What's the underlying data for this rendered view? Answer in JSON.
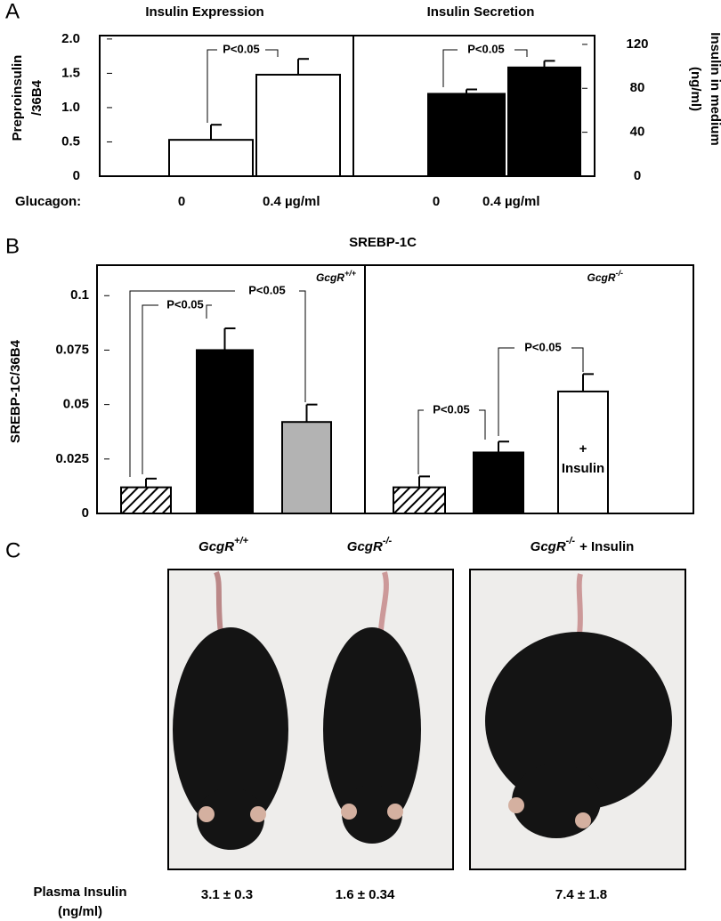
{
  "panel_labels": [
    "A",
    "B",
    "C"
  ],
  "chart_data": [
    {
      "type": "bar",
      "title": "Insulin Expression",
      "ylabel": [
        "Preproinsulin",
        "/36B4"
      ],
      "category_label": "Glucagon:",
      "categories": [
        "0",
        "0.4 µg/ml"
      ],
      "values": [
        0.53,
        1.48
      ],
      "errors": [
        0.22,
        0.23
      ],
      "colors": [
        "#ffffff",
        "#ffffff"
      ],
      "ylim": [
        0,
        2.05
      ],
      "yticks": [
        0,
        0.5,
        {
          "value": 1,
          "label": "1.0"
        },
        1.5,
        {
          "value": 2,
          "label": "2.0"
        }
      ],
      "y_axis_side": "left",
      "grid": false,
      "annotations": [
        "P<0.05"
      ]
    },
    {
      "type": "bar",
      "title": "Insulin Secretion",
      "ylabel": [
        "Insulin in medium",
        "(ng/ml)"
      ],
      "categories": [
        "0",
        "0.4 µg/ml"
      ],
      "values": [
        75,
        99
      ],
      "errors": [
        4,
        6
      ],
      "colors": [
        "#000000",
        "#000000"
      ],
      "ylim": [
        0,
        128
      ],
      "yticks": [
        0,
        40,
        80,
        120
      ],
      "y_axis_side": "right",
      "grid": false,
      "annotations": [
        "P<0.05"
      ]
    },
    {
      "type": "bar",
      "title": "SREBP-1C",
      "ylabel": [
        "SREBP-1C/36B4"
      ],
      "group_labels": [
        {
          "text": "GcgR",
          "sup": "+/+"
        },
        {
          "text": "GcgR",
          "sup": "-/-"
        }
      ],
      "categories": [
        null,
        null,
        null,
        null,
        null,
        null
      ],
      "values": [
        0.012,
        0.075,
        0.042,
        0.012,
        0.028,
        0.056
      ],
      "errors": [
        0.004,
        0.01,
        0.008,
        0.005,
        0.005,
        0.008
      ],
      "colors": [
        "hatch",
        "#000000",
        "#b3b3b3",
        "hatch",
        "#000000",
        "#ffffff"
      ],
      "bar_text": [
        null,
        null,
        null,
        null,
        null,
        [
          "+",
          "Insulin"
        ]
      ],
      "ylim": [
        0,
        0.114
      ],
      "yticks": [
        0,
        0.025,
        0.05,
        0.075,
        0.1
      ],
      "y_axis_side": "left",
      "grid": false,
      "annotations": [
        "P<0.05",
        "P<0.05",
        "P<0.05",
        "P<0.05"
      ]
    }
  ],
  "photos": {
    "labels": [
      {
        "text": "GcgR",
        "sup": "+/+"
      },
      {
        "text": "GcgR",
        "sup": "-/-"
      },
      {
        "text": "GcgR",
        "sup": "-/-",
        "suffix": "+ Insulin"
      }
    ],
    "row_label": [
      "Plasma Insulin",
      "(ng/ml)"
    ],
    "values": [
      "3.1 ± 0.3",
      "1.6 ± 0.34",
      "7.4 ± 1.8"
    ]
  }
}
